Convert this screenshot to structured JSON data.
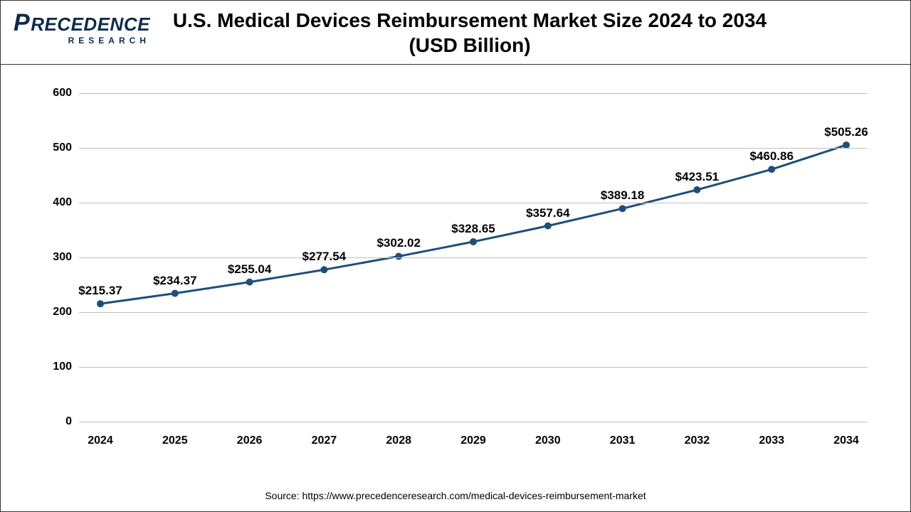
{
  "logo": {
    "main": "RECEDENCE",
    "p": "P",
    "sub": "RESEARCH"
  },
  "title": "U.S. Medical Devices Reimbursement Market Size 2024 to 2034 (USD Billion)",
  "source": "Source: https://www.precedenceresearch.com/medical-devices-reimbursement-market",
  "chart": {
    "type": "line",
    "categories": [
      "2024",
      "2025",
      "2026",
      "2027",
      "2028",
      "2029",
      "2030",
      "2031",
      "2032",
      "2033",
      "2034"
    ],
    "values": [
      215.37,
      234.37,
      255.04,
      277.54,
      302.02,
      328.65,
      357.64,
      389.18,
      423.51,
      460.86,
      505.26
    ],
    "value_labels": [
      "$215.37",
      "$234.37",
      "$255.04",
      "$277.54",
      "$302.02",
      "$328.65",
      "$357.64",
      "$389.18",
      "$423.51",
      "$460.86",
      "$505.26"
    ],
    "ylim": [
      0,
      600
    ],
    "ytick_step": 100,
    "yticks": [
      0,
      100,
      200,
      300,
      400,
      500,
      600
    ],
    "line_color": "#1f4e79",
    "marker_color": "#1f4e79",
    "line_width": 3,
    "marker_radius": 5,
    "grid_color": "#bfbfbf",
    "background_color": "#ffffff",
    "label_fontsize": 17,
    "tick_fontsize": 16,
    "label_offset_y": 30
  }
}
